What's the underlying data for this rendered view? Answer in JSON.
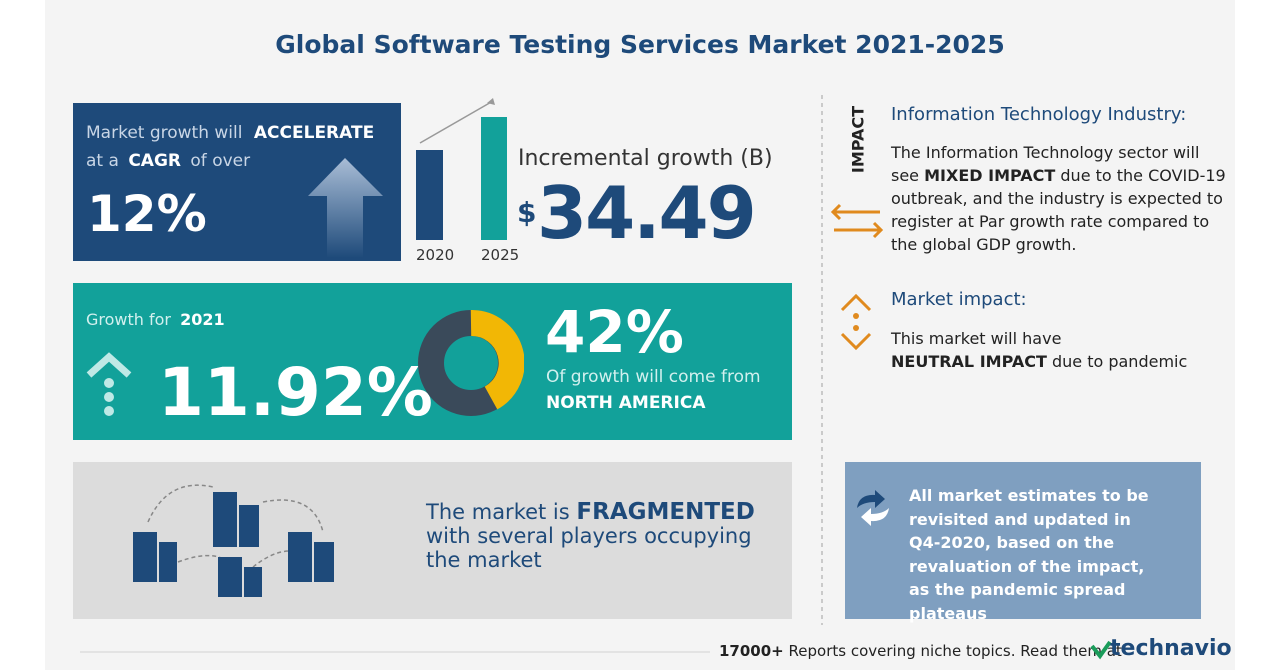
{
  "title": "Global Software Testing Services Market 2021-2025",
  "cagr_box": {
    "text_1": "Market growth will",
    "emphasis_1": "ACCELERATE",
    "text_2": "at a",
    "emphasis_2": "CAGR",
    "text_3": "of over",
    "value": "12%"
  },
  "incremental": {
    "years": [
      "2020",
      "2025"
    ],
    "label": "Incremental growth (B)",
    "currency": "$",
    "value": "34.49"
  },
  "growth_box": {
    "label": "Growth for",
    "year": "2021",
    "value": "11.92%",
    "share": "42%",
    "share_text": "Of growth will come from",
    "region": "NORTH AMERICA"
  },
  "market_box": {
    "prefix": "The market is",
    "emphasis": "FRAGMENTED",
    "rest": "with several players occupying the market"
  },
  "impact": {
    "tag": "IMPACT",
    "industry_heading": "Information Technology Industry:",
    "industry_text_1": "The Information Technology sector will see",
    "industry_emphasis": "MIXED IMPACT",
    "industry_text_2": "due to the COVID-19 outbreak, and the industry is expected to register at Par growth rate compared to the global GDP growth.",
    "market_heading": "Market impact:",
    "market_text_1": "This market will have",
    "market_emphasis": "NEUTRAL IMPACT",
    "market_text_2": "due to pandemic"
  },
  "note": "All market estimates to be revisited and updated in Q4-2020, based on the revaluation of the impact, as the pandemic spread plateaus",
  "footer": {
    "count": "17000+",
    "text": "Reports covering niche topics. Read them at",
    "brand": "technavio"
  }
}
